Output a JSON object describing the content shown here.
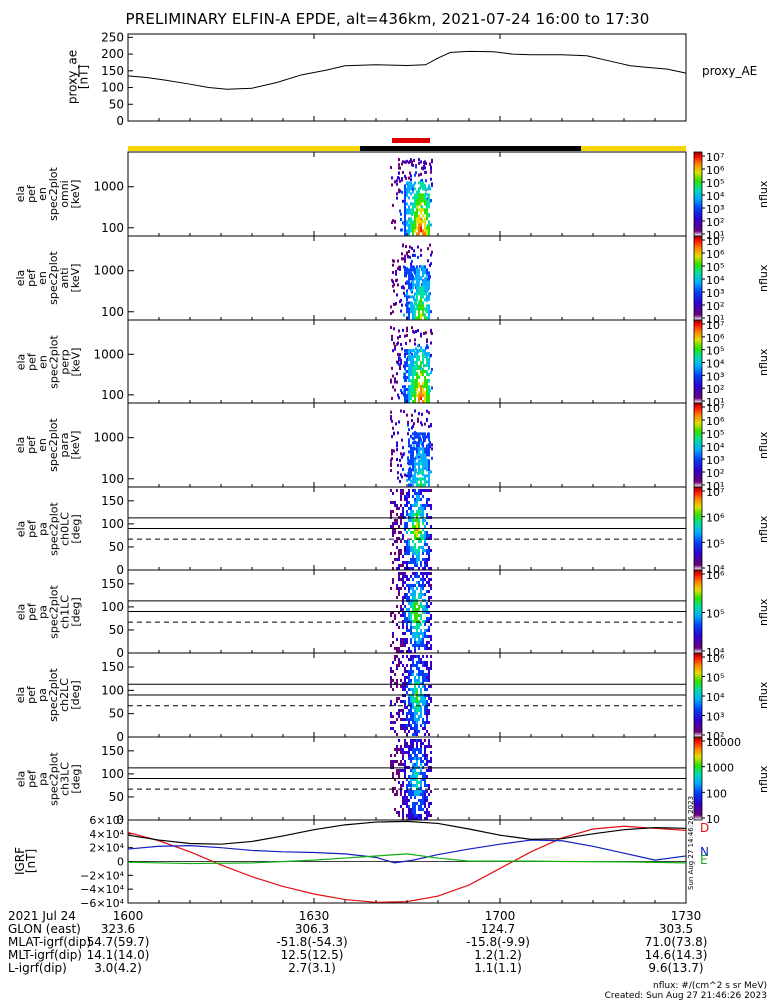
{
  "title": "PRELIMINARY ELFIN-A EPDE, alt=436km, 2021-07-24 16:00 to 17:30",
  "panels": [
    {
      "id": "proxy",
      "ylabel": [
        "proxy_ae",
        "[nT]"
      ],
      "ticks": [
        "250",
        "200",
        "150",
        "100",
        "50",
        "0"
      ],
      "right_label": "proxy_AE"
    },
    {
      "id": "en-omni",
      "ylabel": [
        "ela",
        "pef",
        "en",
        "spec2plot",
        "omni",
        "[keV]"
      ],
      "ticks": [
        "1000",
        "100"
      ],
      "cbar_label": "nflux"
    },
    {
      "id": "en-anti",
      "ylabel": [
        "ela",
        "pef",
        "en",
        "spec2plot",
        "anti",
        "[keV]"
      ],
      "ticks": [
        "1000",
        "100"
      ],
      "cbar_label": "nflux"
    },
    {
      "id": "en-perp",
      "ylabel": [
        "ela",
        "pef",
        "en",
        "spec2plot",
        "perp",
        "[keV]"
      ],
      "ticks": [
        "1000",
        "100"
      ],
      "cbar_label": "nflux"
    },
    {
      "id": "en-para",
      "ylabel": [
        "ela",
        "pef",
        "en",
        "spec2plot",
        "para",
        "[keV]"
      ],
      "ticks": [
        "1000",
        "100"
      ],
      "cbar_label": "nflux"
    },
    {
      "id": "pa-ch0",
      "ylabel": [
        "ela",
        "pef",
        "pa",
        "spec2plot",
        "ch0LC",
        "[deg]"
      ],
      "ticks": [
        "150",
        "100",
        "50",
        "0"
      ],
      "cbar_label": "nflux"
    },
    {
      "id": "pa-ch1",
      "ylabel": [
        "ela",
        "pef",
        "pa",
        "spec2plot",
        "ch1LC",
        "[deg]"
      ],
      "ticks": [
        "150",
        "100",
        "50",
        "0"
      ],
      "cbar_label": "nflux"
    },
    {
      "id": "pa-ch2",
      "ylabel": [
        "ela",
        "pef",
        "pa",
        "spec2plot",
        "ch2LC",
        "[deg]"
      ],
      "ticks": [
        "150",
        "100",
        "50",
        "0"
      ],
      "cbar_label": "nflux"
    },
    {
      "id": "pa-ch3",
      "ylabel": [
        "ela",
        "pef",
        "pa",
        "spec2plot",
        "ch3LC",
        "[deg]"
      ],
      "ticks": [
        "150",
        "100",
        "50",
        "0"
      ],
      "cbar_label": "nflux"
    },
    {
      "id": "igrf",
      "ylabel": [
        "IGRF",
        "[nT]"
      ],
      "ticks": [
        "6×10⁴",
        "4×10⁴",
        "2×10⁴",
        "0",
        "−2×10⁴",
        "−4×10⁴",
        "−6×10⁴"
      ],
      "right_labels": [
        "D",
        "N",
        "E"
      ]
    }
  ],
  "colorbars": [
    [
      "10⁷",
      "10⁶",
      "10⁵",
      "10⁴",
      "10³",
      "10²",
      "10¹"
    ],
    [
      "10⁷",
      "10⁶",
      "10⁵",
      "10⁴",
      "10³",
      "10²",
      "10¹"
    ],
    [
      "10⁷",
      "10⁶",
      "10⁵",
      "10⁴",
      "10³",
      "10²",
      "10¹"
    ],
    [
      "10⁷",
      "10⁶",
      "10⁵",
      "10⁴",
      "10³",
      "10²",
      "10¹"
    ],
    [
      "10⁷",
      "10⁶",
      "10⁵",
      "10⁴"
    ],
    [
      "10⁶",
      "10⁵",
      "10⁴"
    ],
    [
      "10⁶",
      "10⁵",
      "10⁴",
      "10³",
      "10²"
    ],
    [
      "10000",
      "1000",
      "100",
      "10"
    ]
  ],
  "side_stamp": "Sun Aug 27 14:46:26 2023",
  "colors": {
    "proxy_line": "#000000",
    "D": "#e01010",
    "N": "#1020c0",
    "E": "#10b010",
    "total": "#000000",
    "yellow_bar": "#f5d400",
    "black_bar": "#000000",
    "red_marker": "#e00000"
  },
  "chart_data": [
    {
      "type": "line",
      "title": "",
      "ylabel": "proxy_ae [nT]",
      "ylim": [
        0,
        260
      ],
      "x_range": [
        "16:00",
        "17:30"
      ],
      "series": [
        {
          "name": "proxy_AE",
          "x": [
            "16:00",
            "16:03",
            "16:06",
            "16:10",
            "16:13",
            "16:16",
            "16:20",
            "16:24",
            "16:28",
            "16:32",
            "16:35",
            "16:40",
            "16:45",
            "16:48",
            "16:50",
            "16:52",
            "16:55",
            "16:59",
            "17:02",
            "17:05",
            "17:10",
            "17:14",
            "17:18",
            "17:21",
            "17:24",
            "17:27",
            "17:30"
          ],
          "values": [
            135,
            130,
            122,
            110,
            100,
            95,
            98,
            115,
            138,
            152,
            165,
            168,
            166,
            168,
            188,
            205,
            208,
            207,
            200,
            198,
            198,
            195,
            178,
            165,
            160,
            155,
            143
          ]
        }
      ]
    },
    {
      "type": "line",
      "title": "",
      "ylabel": "IGRF [nT]",
      "ylim": [
        -60000,
        60000
      ],
      "x_range": [
        "16:00",
        "17:30"
      ],
      "series": [
        {
          "name": "D",
          "x": [
            "16:00",
            "16:05",
            "16:10",
            "16:15",
            "16:20",
            "16:25",
            "16:30",
            "16:35",
            "16:40",
            "16:45",
            "16:50",
            "16:55",
            "17:00",
            "17:05",
            "17:10",
            "17:15",
            "17:20",
            "17:25",
            "17:30"
          ],
          "values": [
            42000,
            30000,
            14000,
            -5000,
            -22000,
            -36000,
            -47000,
            -55000,
            -59000,
            -58000,
            -50000,
            -34000,
            -10000,
            14000,
            34000,
            47000,
            51000,
            48000,
            45000
          ]
        },
        {
          "name": "N",
          "x": [
            "16:00",
            "16:05",
            "16:10",
            "16:15",
            "16:20",
            "16:25",
            "16:30",
            "16:35",
            "16:40",
            "16:43",
            "16:46",
            "16:50",
            "16:55",
            "17:00",
            "17:05",
            "17:10",
            "17:15",
            "17:20",
            "17:25",
            "17:30"
          ],
          "values": [
            18000,
            22000,
            23000,
            20000,
            16000,
            14000,
            13000,
            11000,
            6000,
            -2000,
            2000,
            10000,
            18000,
            25000,
            31000,
            30000,
            22000,
            12000,
            2000,
            8000
          ]
        },
        {
          "name": "E",
          "x": [
            "16:00",
            "16:10",
            "16:20",
            "16:30",
            "16:35",
            "16:40",
            "16:45",
            "16:50",
            "16:55",
            "17:00",
            "17:05",
            "17:10",
            "17:20",
            "17:30"
          ],
          "values": [
            -1000,
            -3000,
            -2000,
            2000,
            5000,
            8000,
            11000,
            5000,
            500,
            500,
            500,
            0,
            -500,
            -2000
          ]
        },
        {
          "name": "total",
          "x": [
            "16:00",
            "16:05",
            "16:10",
            "16:15",
            "16:20",
            "16:25",
            "16:30",
            "16:35",
            "16:40",
            "16:45",
            "16:50",
            "16:55",
            "17:00",
            "17:05",
            "17:10",
            "17:15",
            "17:20",
            "17:25",
            "17:30"
          ],
          "values": [
            38000,
            31000,
            26000,
            25000,
            29000,
            37000,
            46000,
            53000,
            57000,
            58000,
            55000,
            47000,
            38000,
            32000,
            33000,
            40000,
            46000,
            49000,
            48000
          ]
        }
      ]
    }
  ],
  "x_axis": {
    "ticks": [
      "1600",
      "1630",
      "1700",
      "1730"
    ],
    "rows": [
      {
        "label": "2021 Jul 24",
        "values": [
          "",
          "",
          "",
          ""
        ]
      },
      {
        "label": "GLON (east)",
        "values": [
          "323.6",
          "306.3",
          "124.7",
          "303.5"
        ]
      },
      {
        "label": "MLAT-igrf(dip)",
        "values": [
          "54.7(59.7)",
          "-51.8(-54.3)",
          "-15.8(-9.9)",
          "71.0(73.8)"
        ]
      },
      {
        "label": "MLT-igrf(dip)",
        "values": [
          "14.1(14.0)",
          "12.5(12.5)",
          "1.2(1.2)",
          "14.6(14.3)"
        ]
      },
      {
        "label": "L-igrf(dip)",
        "values": [
          "3.0(4.2)",
          "2.7(3.1)",
          "1.1(1.1)",
          "9.6(13.7)"
        ]
      }
    ]
  },
  "footer": {
    "units": "nflux: #/(cm^2 s sr MeV)",
    "created": "Created: Sun Aug 27 21:46:26 2023"
  }
}
